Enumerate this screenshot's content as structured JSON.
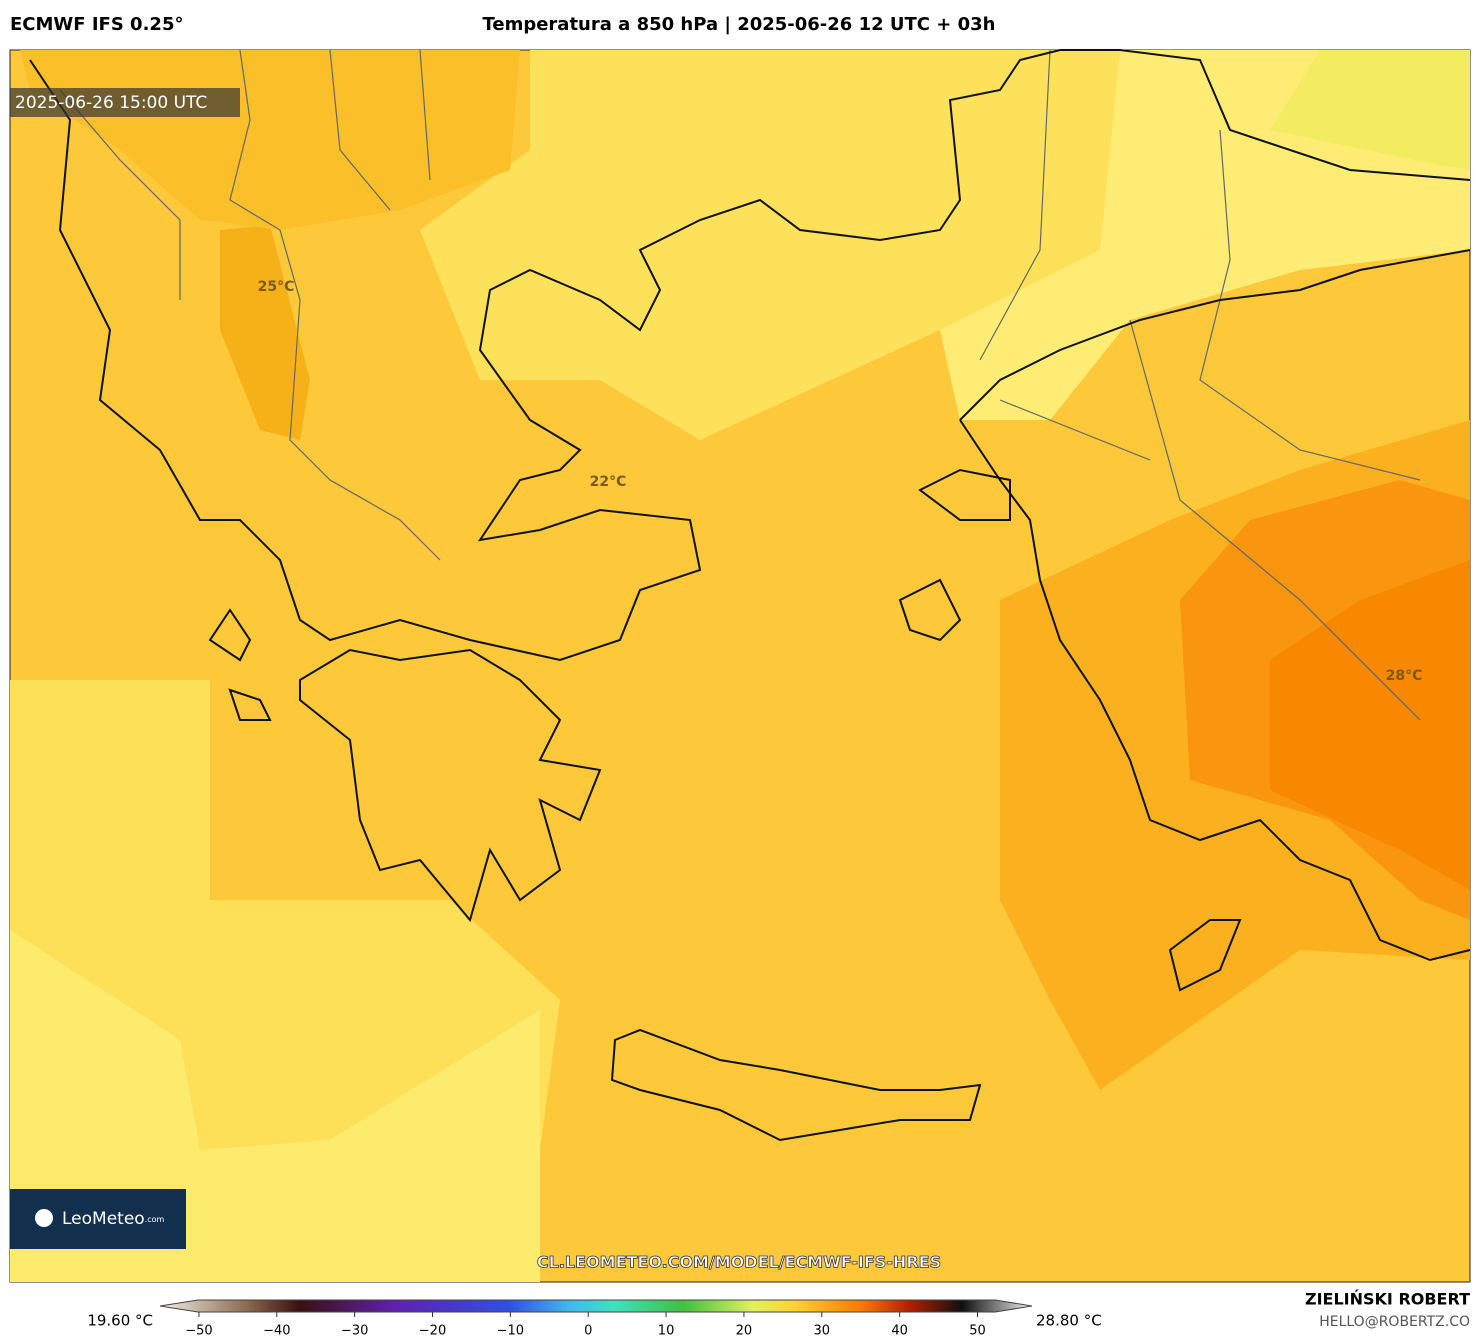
{
  "header": {
    "model": "ECMWF IFS 0.25°",
    "title": "Temperatura a 850 hPa | 2025-06-26 12 UTC + 03h"
  },
  "map": {
    "valid_time": "2025-06-26 15:00 UTC",
    "labels": [
      "25°C",
      "22°C",
      "28°C"
    ],
    "url": "CL.LEOMETEO.COM/MODEL/ECMWF-IFS-HRES",
    "logo": "LeoMeteo",
    "logo_suffix": ".com"
  },
  "colorbar": {
    "min_label": "19.60 °C",
    "max_label": "28.80 °C",
    "range": [
      -55,
      57
    ],
    "ticks": [
      {
        "value": -50,
        "label": "−50"
      },
      {
        "value": -40,
        "label": "−40"
      },
      {
        "value": -30,
        "label": "−30"
      },
      {
        "value": -20,
        "label": "−20"
      },
      {
        "value": -10,
        "label": "−10"
      },
      0,
      10,
      20,
      30,
      40,
      50
    ]
  },
  "footer": {
    "author": "ZIELIŃSKI ROBERT",
    "email": "HELLO@ROBERTZ.CO"
  }
}
